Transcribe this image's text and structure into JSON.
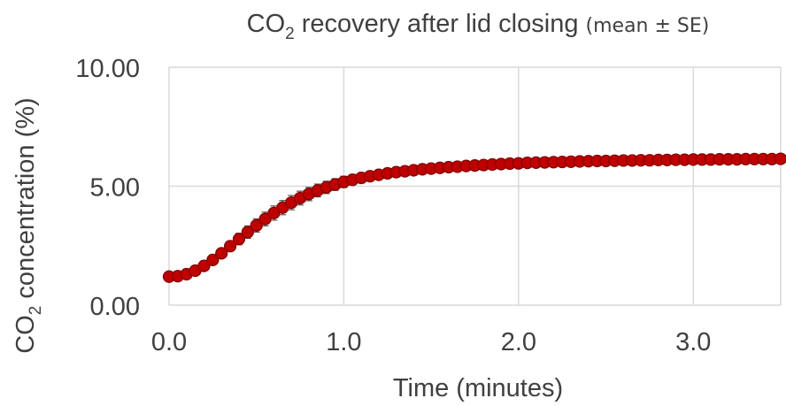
{
  "chart_data": {
    "type": "scatter",
    "title": {
      "main_prefix": "CO",
      "main_subscript": "2",
      "main_suffix": " recovery after lid closing ",
      "note": "(mean ± SE)"
    },
    "xlabel": "Time (minutes)",
    "ylabel": {
      "prefix": "CO",
      "subscript": "2",
      "suffix": " concentration (%)"
    },
    "xlim": [
      0,
      3.5
    ],
    "ylim": [
      0,
      10
    ],
    "x_ticks": [
      0,
      1,
      2,
      3
    ],
    "x_tick_labels": [
      "0.0",
      "1.0",
      "2.0",
      "3.0"
    ],
    "y_ticks": [
      0,
      5,
      10
    ],
    "y_tick_labels": [
      "0.00",
      "5.00",
      "10.00"
    ],
    "grid": "vertical-and-horizontal",
    "legend": "none",
    "series": [
      {
        "marker_color": "#C00000",
        "marker_edge_color": "#7F0000",
        "error_bar_color": "#595959",
        "x": [
          0.0,
          0.05,
          0.1,
          0.15,
          0.2,
          0.25,
          0.3,
          0.35,
          0.4,
          0.45,
          0.5,
          0.55,
          0.6,
          0.65,
          0.7,
          0.75,
          0.8,
          0.85,
          0.9,
          0.95,
          1.0,
          1.05,
          1.1,
          1.15,
          1.2,
          1.25,
          1.3,
          1.35,
          1.4,
          1.45,
          1.5,
          1.55,
          1.6,
          1.65,
          1.7,
          1.75,
          1.8,
          1.85,
          1.9,
          1.95,
          2.0,
          2.05,
          2.1,
          2.15,
          2.2,
          2.25,
          2.3,
          2.35,
          2.4,
          2.45,
          2.5,
          2.55,
          2.6,
          2.65,
          2.7,
          2.75,
          2.8,
          2.85,
          2.9,
          2.95,
          3.0,
          3.05,
          3.1,
          3.15,
          3.2,
          3.25,
          3.3,
          3.35,
          3.4,
          3.45,
          3.5
        ],
        "y": [
          1.2,
          1.22,
          1.3,
          1.45,
          1.65,
          1.9,
          2.18,
          2.48,
          2.78,
          3.07,
          3.35,
          3.62,
          3.87,
          4.1,
          4.31,
          4.5,
          4.67,
          4.82,
          4.95,
          5.07,
          5.18,
          5.27,
          5.35,
          5.42,
          5.48,
          5.54,
          5.59,
          5.63,
          5.67,
          5.71,
          5.74,
          5.77,
          5.8,
          5.82,
          5.85,
          5.87,
          5.89,
          5.91,
          5.93,
          5.95,
          5.96,
          5.98,
          5.99,
          6.0,
          6.01,
          6.02,
          6.03,
          6.04,
          6.05,
          6.06,
          6.06,
          6.07,
          6.08,
          6.08,
          6.09,
          6.09,
          6.1,
          6.1,
          6.11,
          6.11,
          6.12,
          6.12,
          6.12,
          6.13,
          6.13,
          6.13,
          6.14,
          6.14,
          6.14,
          6.14,
          6.15
        ],
        "se": [
          0.05,
          0.05,
          0.07,
          0.09,
          0.12,
          0.15,
          0.18,
          0.21,
          0.24,
          0.26,
          0.28,
          0.29,
          0.3,
          0.3,
          0.3,
          0.29,
          0.28,
          0.27,
          0.26,
          0.25,
          0.24,
          0.22,
          0.21,
          0.2,
          0.19,
          0.18,
          0.17,
          0.16,
          0.15,
          0.14,
          0.13,
          0.12,
          0.11,
          0.11,
          0.1,
          0.1,
          0.09,
          0.09,
          0.08,
          0.08,
          0.08,
          0.07,
          0.07,
          0.07,
          0.06,
          0.06,
          0.06,
          0.06,
          0.05,
          0.05,
          0.05,
          0.05,
          0.05,
          0.05,
          0.05,
          0.05,
          0.04,
          0.04,
          0.04,
          0.04,
          0.04,
          0.04,
          0.04,
          0.04,
          0.04,
          0.04,
          0.04,
          0.04,
          0.04,
          0.04,
          0.04
        ]
      }
    ]
  }
}
